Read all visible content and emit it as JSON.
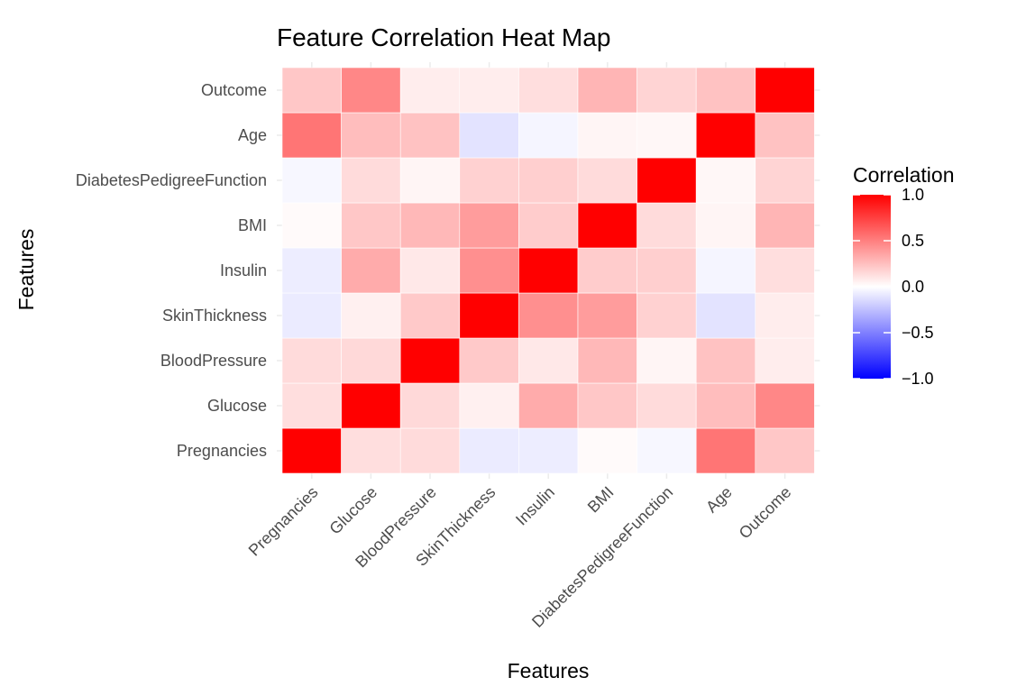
{
  "chart_data": {
    "type": "heatmap",
    "title": "Feature Correlation Heat Map",
    "xlabel": "Features",
    "ylabel": "Features",
    "features": [
      "Pregnancies",
      "Glucose",
      "BloodPressure",
      "SkinThickness",
      "Insulin",
      "BMI",
      "DiabetesPedigreeFunction",
      "Age",
      "Outcome"
    ],
    "matrix": [
      [
        1.0,
        0.13,
        0.14,
        -0.08,
        -0.07,
        0.02,
        -0.03,
        0.54,
        0.22
      ],
      [
        0.13,
        1.0,
        0.15,
        0.06,
        0.33,
        0.22,
        0.14,
        0.26,
        0.47
      ],
      [
        0.14,
        0.15,
        1.0,
        0.21,
        0.09,
        0.28,
        0.04,
        0.24,
        0.07
      ],
      [
        -0.08,
        0.06,
        0.21,
        1.0,
        0.44,
        0.39,
        0.18,
        -0.11,
        0.07
      ],
      [
        -0.07,
        0.33,
        0.09,
        0.44,
        1.0,
        0.2,
        0.19,
        -0.04,
        0.13
      ],
      [
        0.02,
        0.22,
        0.28,
        0.39,
        0.2,
        1.0,
        0.14,
        0.04,
        0.29
      ],
      [
        -0.03,
        0.14,
        0.04,
        0.18,
        0.19,
        0.14,
        1.0,
        0.03,
        0.17
      ],
      [
        0.54,
        0.26,
        0.24,
        -0.11,
        -0.04,
        0.04,
        0.03,
        1.0,
        0.24
      ],
      [
        0.22,
        0.47,
        0.07,
        0.07,
        0.13,
        0.29,
        0.17,
        0.24,
        1.0
      ]
    ],
    "legend": {
      "title": "Correlation",
      "ticks": [
        1.0,
        0.5,
        0.0,
        -0.5,
        -1.0
      ],
      "tick_labels": [
        "1.0",
        "0.5",
        "0.0",
        "−0.5",
        "−1.0"
      ],
      "range": [
        -1.0,
        1.0
      ],
      "placement": "right"
    },
    "colors": {
      "low": "#0000ff",
      "mid": "#ffffff",
      "high": "#ff0000"
    },
    "grid": true
  }
}
